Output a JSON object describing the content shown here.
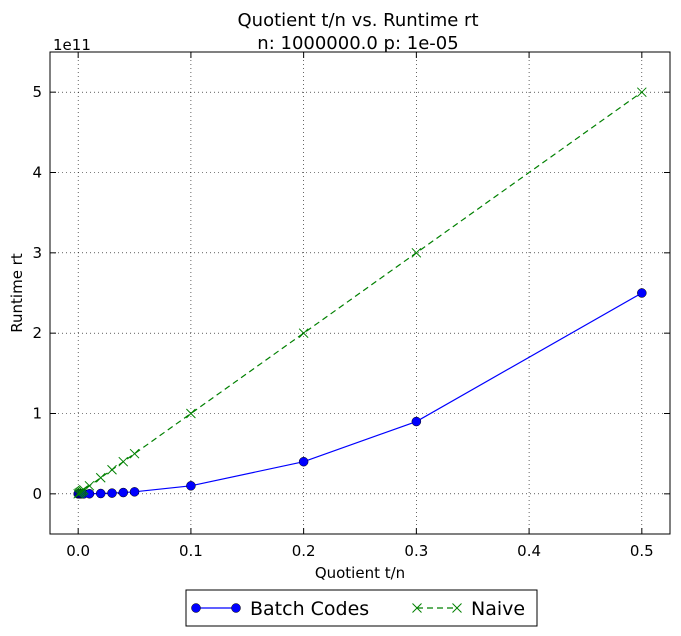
{
  "chart_data": {
    "type": "line",
    "title": "Quotient t/n vs. Runtime rt",
    "subtitle": "n: 1000000.0 p: 1e-05",
    "xlabel": "Quotient t/n",
    "ylabel": "Runtime rt",
    "y_offset_label": "1e11",
    "xlim": [
      -0.025,
      0.525
    ],
    "ylim": [
      -0.5,
      5.5
    ],
    "y_units": "1e11",
    "x_ticks": [
      0.0,
      0.1,
      0.2,
      0.3,
      0.4,
      0.5
    ],
    "x_tick_labels": [
      "0.0",
      "0.1",
      "0.2",
      "0.3",
      "0.4",
      "0.5"
    ],
    "y_ticks": [
      0,
      1,
      2,
      3,
      4,
      5
    ],
    "y_tick_labels": [
      "0",
      "1",
      "2",
      "3",
      "4",
      "5"
    ],
    "grid": true,
    "legend_position": "below-center",
    "series": [
      {
        "name": "Batch Codes",
        "color": "#0000ff",
        "line_style": "solid",
        "marker": "circle",
        "x": [
          0.0,
          0.001,
          0.002,
          0.003,
          0.004,
          0.005,
          0.01,
          0.02,
          0.03,
          0.04,
          0.05,
          0.1,
          0.2,
          0.3,
          0.5
        ],
        "y": [
          0.0,
          1e-05,
          4e-05,
          9e-05,
          0.00016,
          0.00025,
          0.001,
          0.004,
          0.009,
          0.016,
          0.025,
          0.1,
          0.4,
          0.9,
          2.5
        ]
      },
      {
        "name": "Naive",
        "color": "#008000",
        "line_style": "dashed",
        "marker": "x",
        "x": [
          0.0,
          0.001,
          0.002,
          0.003,
          0.004,
          0.005,
          0.01,
          0.02,
          0.03,
          0.04,
          0.05,
          0.1,
          0.2,
          0.3,
          0.5
        ],
        "y": [
          0.0,
          0.01,
          0.02,
          0.03,
          0.04,
          0.05,
          0.1,
          0.2,
          0.3,
          0.4,
          0.5,
          1.0,
          2.0,
          3.0,
          5.0
        ]
      }
    ]
  }
}
